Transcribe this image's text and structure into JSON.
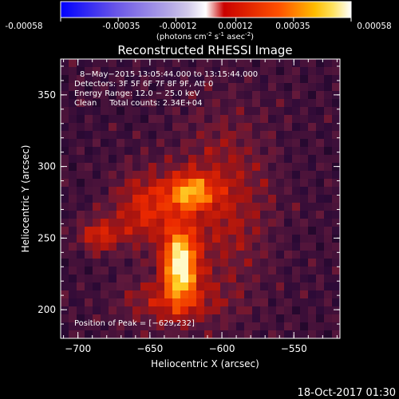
{
  "colorbar": {
    "tick_labels": [
      "-0.00058",
      "-0.00035",
      "-0.00012",
      "0.00012",
      "0.00035",
      "0.00058"
    ],
    "unit_parts": [
      "(photons cm",
      "-2",
      " s",
      "-1",
      " asec",
      "-2",
      ")"
    ]
  },
  "chart_data": {
    "type": "heatmap",
    "title": "Reconstructed RHESSI Image",
    "xlabel": "Heliocentric X (arcsec)",
    "ylabel": "Heliocentric Y (arcsec)",
    "xlim": [
      -712,
      -518
    ],
    "ylim": [
      180,
      375
    ],
    "xticks": [
      -700,
      -650,
      -600,
      -550
    ],
    "yticks": [
      200,
      250,
      300,
      350
    ],
    "xtick_labels": [
      "−700",
      "−650",
      "−600",
      "−550"
    ],
    "ytick_labels": [
      "200",
      "250",
      "300",
      "350"
    ],
    "colorbar_range": [
      -0.00058,
      0.00058
    ],
    "annotations": [
      "8−May−2015 13:05:44.000 to 13:15:44.000",
      "Detectors: 3F 5F 6F 7F 8F 9F, Att 0",
      "Energy Range: 12.0 − 25.0 keV",
      "Clean     Total counts: 2.34E+04"
    ],
    "peak_label": "Position of Peak = [−629,232]",
    "peak": {
      "x": -629,
      "y": 232
    },
    "sources": [
      {
        "x": -629,
        "y": 232,
        "sx": 8,
        "sy": 16,
        "amp": 1.0
      },
      {
        "x": -622,
        "y": 282,
        "sx": 11,
        "sy": 9,
        "amp": 0.62
      },
      {
        "x": -653,
        "y": 270,
        "sx": 16,
        "sy": 18,
        "amp": 0.42
      },
      {
        "x": -685,
        "y": 252,
        "sx": 10,
        "sy": 8,
        "amp": 0.4
      },
      {
        "x": -598,
        "y": 275,
        "sx": 22,
        "sy": 42,
        "amp": 0.3
      },
      {
        "x": -635,
        "y": 205,
        "sx": 24,
        "sy": 12,
        "amp": 0.32
      }
    ]
  },
  "timestamp": "18-Oct-2017 01:30"
}
